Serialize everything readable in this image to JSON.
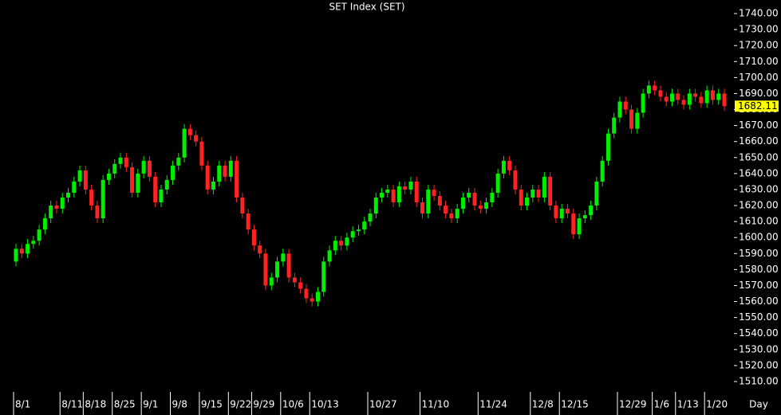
{
  "chart_data": {
    "type": "candlestick",
    "title": "SET Index (SET)",
    "x_label": "Day",
    "up_color": "#00ee00",
    "down_color": "#ff2222",
    "last_color": "#ffff00",
    "categories": [
      "8/1",
      null,
      null,
      null,
      null,
      null,
      null,
      null,
      "8/11",
      null,
      null,
      null,
      "8/18",
      null,
      null,
      null,
      null,
      "8/25",
      null,
      null,
      null,
      null,
      "9/1",
      null,
      null,
      null,
      null,
      "9/8",
      null,
      null,
      null,
      null,
      "9/15",
      null,
      null,
      null,
      null,
      "9/22",
      null,
      null,
      null,
      "9/29",
      null,
      null,
      null,
      null,
      "10/6",
      null,
      null,
      null,
      null,
      "10/13",
      null,
      null,
      null,
      null,
      null,
      null,
      null,
      null,
      null,
      "10/27",
      null,
      null,
      null,
      null,
      null,
      null,
      null,
      null,
      "11/10",
      null,
      null,
      null,
      null,
      null,
      null,
      null,
      null,
      null,
      "11/24",
      null,
      null,
      null,
      null,
      null,
      null,
      null,
      null,
      "12/8",
      null,
      null,
      null,
      null,
      "12/15",
      null,
      null,
      null,
      null,
      null,
      null,
      null,
      null,
      null,
      "12/29",
      null,
      null,
      null,
      null,
      null,
      "1/6",
      null,
      null,
      null,
      "1/13",
      null,
      null,
      null,
      null,
      "1/20",
      null,
      null,
      null
    ],
    "open": [
      1585,
      1593,
      1590,
      1596,
      1598,
      1605,
      1612,
      1620,
      1618,
      1625,
      1628,
      1635,
      1642,
      1630,
      1620,
      1612,
      1636,
      1640,
      1646,
      1650,
      1644,
      1628,
      1640,
      1648,
      1638,
      1622,
      1630,
      1636,
      1645,
      1650,
      1668,
      1664,
      1660,
      1645,
      1630,
      1635,
      1645,
      1638,
      1648,
      1625,
      1615,
      1605,
      1595,
      1590,
      1570,
      1575,
      1585,
      1590,
      1575,
      1572,
      1568,
      1562,
      1560,
      1566,
      1585,
      1592,
      1598,
      1595,
      1600,
      1604,
      1605,
      1610,
      1615,
      1625,
      1628,
      1630,
      1622,
      1632,
      1630,
      1635,
      1622,
      1615,
      1630,
      1626,
      1620,
      1615,
      1612,
      1618,
      1625,
      1628,
      1620,
      1618,
      1622,
      1628,
      1640,
      1648,
      1642,
      1630,
      1620,
      1625,
      1630,
      1625,
      1638,
      1620,
      1612,
      1618,
      1615,
      1602,
      1612,
      1614,
      1620,
      1635,
      1648,
      1665,
      1675,
      1685,
      1680,
      1668,
      1678,
      1690,
      1695,
      1692,
      1688,
      1685,
      1690,
      1686,
      1683,
      1690,
      1688,
      1684,
      1692,
      1686,
      1690
    ],
    "high": [
      1596,
      1596,
      1599,
      1601,
      1608,
      1615,
      1623,
      1623,
      1628,
      1631,
      1638,
      1645,
      1645,
      1633,
      1623,
      1639,
      1643,
      1649,
      1653,
      1653,
      1647,
      1643,
      1651,
      1651,
      1641,
      1633,
      1639,
      1648,
      1653,
      1671,
      1671,
      1667,
      1663,
      1648,
      1638,
      1648,
      1648,
      1651,
      1651,
      1628,
      1618,
      1608,
      1598,
      1593,
      1578,
      1588,
      1593,
      1593,
      1578,
      1575,
      1571,
      1565,
      1569,
      1588,
      1595,
      1601,
      1601,
      1603,
      1607,
      1608,
      1613,
      1618,
      1628,
      1631,
      1633,
      1633,
      1635,
      1635,
      1638,
      1638,
      1625,
      1633,
      1633,
      1629,
      1623,
      1618,
      1621,
      1628,
      1631,
      1631,
      1623,
      1625,
      1631,
      1643,
      1651,
      1651,
      1645,
      1633,
      1628,
      1633,
      1633,
      1641,
      1641,
      1623,
      1621,
      1621,
      1618,
      1615,
      1617,
      1623,
      1638,
      1651,
      1668,
      1678,
      1688,
      1688,
      1683,
      1681,
      1693,
      1698,
      1698,
      1695,
      1691,
      1693,
      1693,
      1689,
      1693,
      1693,
      1691,
      1695,
      1695,
      1693,
      1693
    ],
    "low": [
      1582,
      1587,
      1587,
      1593,
      1595,
      1602,
      1609,
      1615,
      1615,
      1622,
      1625,
      1632,
      1627,
      1617,
      1609,
      1609,
      1633,
      1637,
      1643,
      1641,
      1625,
      1625,
      1637,
      1635,
      1619,
      1619,
      1627,
      1633,
      1642,
      1647,
      1661,
      1657,
      1642,
      1627,
      1627,
      1632,
      1635,
      1635,
      1622,
      1612,
      1602,
      1592,
      1587,
      1567,
      1567,
      1572,
      1582,
      1572,
      1569,
      1565,
      1559,
      1557,
      1557,
      1563,
      1582,
      1589,
      1592,
      1592,
      1597,
      1601,
      1602,
      1607,
      1612,
      1622,
      1625,
      1619,
      1619,
      1627,
      1627,
      1619,
      1612,
      1612,
      1623,
      1617,
      1612,
      1609,
      1609,
      1615,
      1622,
      1617,
      1615,
      1615,
      1619,
      1625,
      1637,
      1639,
      1627,
      1617,
      1617,
      1622,
      1622,
      1622,
      1617,
      1609,
      1609,
      1612,
      1599,
      1599,
      1609,
      1611,
      1617,
      1632,
      1645,
      1662,
      1672,
      1677,
      1665,
      1665,
      1675,
      1687,
      1689,
      1685,
      1682,
      1682,
      1683,
      1680,
      1680,
      1685,
      1681,
      1681,
      1683,
      1683,
      1679.11
    ],
    "close": [
      1593,
      1590,
      1596,
      1598,
      1605,
      1612,
      1620,
      1618,
      1625,
      1628,
      1635,
      1642,
      1630,
      1620,
      1612,
      1636,
      1640,
      1646,
      1650,
      1644,
      1628,
      1640,
      1648,
      1638,
      1622,
      1630,
      1636,
      1645,
      1650,
      1668,
      1664,
      1660,
      1645,
      1630,
      1635,
      1645,
      1638,
      1648,
      1625,
      1615,
      1605,
      1595,
      1590,
      1570,
      1575,
      1585,
      1590,
      1575,
      1572,
      1568,
      1562,
      1560,
      1566,
      1585,
      1592,
      1598,
      1595,
      1600,
      1604,
      1605,
      1610,
      1615,
      1625,
      1628,
      1630,
      1622,
      1632,
      1630,
      1635,
      1622,
      1615,
      1630,
      1626,
      1620,
      1615,
      1612,
      1618,
      1625,
      1628,
      1620,
      1618,
      1622,
      1628,
      1640,
      1648,
      1642,
      1630,
      1620,
      1625,
      1630,
      1625,
      1638,
      1620,
      1612,
      1618,
      1615,
      1602,
      1612,
      1614,
      1620,
      1635,
      1648,
      1665,
      1675,
      1685,
      1680,
      1668,
      1678,
      1690,
      1695,
      1692,
      1688,
      1685,
      1690,
      1686,
      1683,
      1690,
      1688,
      1684,
      1692,
      1686,
      1690,
      1682.11
    ],
    "ylim": [
      1510,
      1740
    ],
    "yticks": [
      {
        "value": 1510,
        "label": "1510.00"
      },
      {
        "value": 1520,
        "label": "1520.00"
      },
      {
        "value": 1530,
        "label": "1530.00"
      },
      {
        "value": 1540,
        "label": "1540.00"
      },
      {
        "value": 1550,
        "label": "1550.00"
      },
      {
        "value": 1560,
        "label": "1560.00"
      },
      {
        "value": 1570,
        "label": "1570.00"
      },
      {
        "value": 1580,
        "label": "1580.00"
      },
      {
        "value": 1590,
        "label": "1590.00"
      },
      {
        "value": 1600,
        "label": "1600.00"
      },
      {
        "value": 1610,
        "label": "1610.00"
      },
      {
        "value": 1620,
        "label": "1620.00"
      },
      {
        "value": 1630,
        "label": "1630.00"
      },
      {
        "value": 1640,
        "label": "1640.00"
      },
      {
        "value": 1650,
        "label": "1650.00"
      },
      {
        "value": 1660,
        "label": "1660.00"
      },
      {
        "value": 1670,
        "label": "1670.00"
      },
      {
        "value": 1680,
        "label": "1680.00"
      },
      {
        "value": 1690,
        "label": "1690.00"
      },
      {
        "value": 1700,
        "label": "1700.00"
      },
      {
        "value": 1710,
        "label": "1710.00"
      },
      {
        "value": 1720,
        "label": "1720.00"
      },
      {
        "value": 1730,
        "label": "1730.00"
      },
      {
        "value": 1740,
        "label": "1740.00"
      }
    ]
  }
}
